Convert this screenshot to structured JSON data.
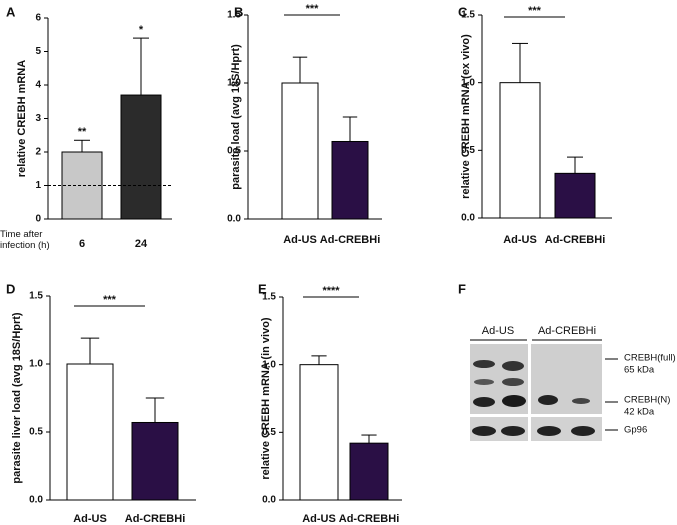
{
  "chart_data": [
    {
      "type": "bar",
      "panel": "A",
      "ylabel": "relative CREBH mRNA",
      "xlabel": "Time after infection (h)",
      "categories": [
        "6",
        "24"
      ],
      "values": [
        2.0,
        3.7
      ],
      "errors": [
        0.35,
        1.7
      ],
      "colors": [
        "#c8c8c8",
        "#2b2b2b"
      ],
      "annotations": [
        "**",
        "*"
      ],
      "reference_line": 1,
      "ylim": [
        0,
        6
      ],
      "yticks": [
        0,
        1,
        2,
        3,
        4,
        5,
        6
      ]
    },
    {
      "type": "bar",
      "panel": "B",
      "ylabel": "parasite load (avg 18S/Hprt)",
      "categories": [
        "Ad-US",
        "Ad-CREBHi"
      ],
      "values": [
        1.0,
        0.57
      ],
      "errors": [
        0.19,
        0.18
      ],
      "colors": [
        "#ffffff",
        "#2a0f45"
      ],
      "significance": "***",
      "ylim": [
        0,
        1.5
      ],
      "yticks": [
        {
          "value": 0,
          "label": "0.0"
        },
        0.5,
        {
          "value": 1,
          "label": "1.0"
        },
        1.5
      ]
    },
    {
      "type": "bar",
      "panel": "C",
      "ylabel": "relative CREBH mRNA (ex vivo)",
      "categories": [
        "Ad-US",
        "Ad-CREBHi"
      ],
      "values": [
        1.0,
        0.33
      ],
      "errors": [
        0.29,
        0.12
      ],
      "colors": [
        "#ffffff",
        "#2a0f45"
      ],
      "significance": "***",
      "ylim": [
        0,
        1.5
      ],
      "yticks": [
        {
          "value": 0,
          "label": "0.0"
        },
        0.5,
        {
          "value": 1,
          "label": "1.0"
        },
        1.5
      ]
    },
    {
      "type": "bar",
      "panel": "D",
      "ylabel": "parasite liver load (avg 18S/Hprt)",
      "categories": [
        "Ad-US",
        "Ad-CREBHi"
      ],
      "values": [
        1.0,
        0.57
      ],
      "errors": [
        0.19,
        0.18
      ],
      "colors": [
        "#ffffff",
        "#2a0f45"
      ],
      "significance": "***",
      "ylim": [
        0,
        1.5
      ],
      "yticks": [
        {
          "value": 0,
          "label": "0.0"
        },
        0.5,
        {
          "value": 1,
          "label": "1.0"
        },
        1.5
      ]
    },
    {
      "type": "bar",
      "panel": "E",
      "ylabel": "relative CREBH mRNA (in vivo)",
      "categories": [
        "Ad-US",
        "Ad-CREBHi"
      ],
      "values": [
        1.0,
        0.42
      ],
      "errors": [
        0.065,
        0.06
      ],
      "colors": [
        "#ffffff",
        "#2a0f45"
      ],
      "significance": "****",
      "ylim": [
        0,
        1.5
      ],
      "yticks": [
        {
          "value": 0,
          "label": "0.0"
        },
        0.5,
        {
          "value": 1,
          "label": "1.0"
        },
        1.5
      ]
    }
  ],
  "blot": {
    "panel": "F",
    "lanes": [
      "Ad-US",
      "Ad-CREBHi"
    ],
    "markers": [
      {
        "name": "CREBH(full)",
        "size": "65 kDa"
      },
      {
        "name": "CREBH(N)",
        "size": "42 kDa"
      },
      {
        "name": "Gp96"
      }
    ]
  }
}
